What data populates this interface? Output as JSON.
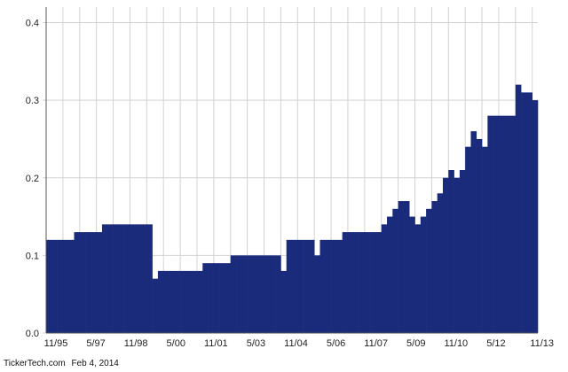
{
  "footer": {
    "source": "TickerTech.com",
    "date": "Feb 4, 2014"
  },
  "chart_data": {
    "type": "bar",
    "title": "",
    "xlabel": "",
    "ylabel": "",
    "ylim": [
      0,
      0.42
    ],
    "yticks": [
      0.0,
      0.1,
      0.2,
      0.3,
      0.4
    ],
    "ytick_labels": [
      "0.0",
      "0.1",
      "0.2",
      "0.3",
      "0.4"
    ],
    "xtick_labels": [
      "11/95",
      "5/97",
      "11/98",
      "5/00",
      "11/01",
      "5/03",
      "11/04",
      "5/06",
      "11/07",
      "5/09",
      "11/10",
      "5/12",
      "11/13"
    ],
    "grid": true,
    "bar_color": "#1a2b7c",
    "values": [
      0.12,
      0.12,
      0.12,
      0.12,
      0.12,
      0.13,
      0.13,
      0.13,
      0.13,
      0.13,
      0.14,
      0.14,
      0.14,
      0.14,
      0.14,
      0.14,
      0.14,
      0.14,
      0.14,
      0.07,
      0.08,
      0.08,
      0.08,
      0.08,
      0.08,
      0.08,
      0.08,
      0.08,
      0.09,
      0.09,
      0.09,
      0.09,
      0.09,
      0.1,
      0.1,
      0.1,
      0.1,
      0.1,
      0.1,
      0.1,
      0.1,
      0.1,
      0.08,
      0.12,
      0.12,
      0.12,
      0.12,
      0.12,
      0.1,
      0.12,
      0.12,
      0.12,
      0.12,
      0.13,
      0.13,
      0.13,
      0.13,
      0.13,
      0.13,
      0.13,
      0.14,
      0.15,
      0.16,
      0.17,
      0.17,
      0.15,
      0.14,
      0.15,
      0.16,
      0.17,
      0.18,
      0.2,
      0.21,
      0.2,
      0.21,
      0.24,
      0.26,
      0.25,
      0.24,
      0.28,
      0.28,
      0.28,
      0.28,
      0.28,
      0.32,
      0.31,
      0.31,
      0.3
    ]
  }
}
